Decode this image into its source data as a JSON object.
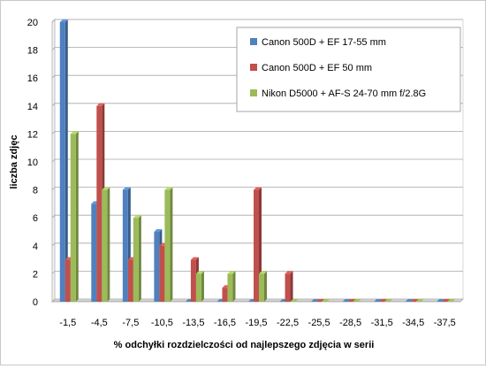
{
  "chart_data": {
    "type": "bar",
    "categories": [
      "-1,5",
      "-4,5",
      "-7,5",
      "-10,5",
      "-13,5",
      "-16,5",
      "-19,5",
      "-22,5",
      "-25,5",
      "-28,5",
      "-31,5",
      "-34,5",
      "-37,5"
    ],
    "series": [
      {
        "name": "Canon 500D + EF 17-55 mm",
        "color": "#4F81BD",
        "values": [
          20,
          7,
          8,
          5,
          0,
          0,
          0,
          0,
          0,
          0,
          0,
          0,
          0
        ]
      },
      {
        "name": "Canon 500D + EF 50 mm",
        "color": "#C0504D",
        "values": [
          3,
          14,
          3,
          4,
          3,
          1,
          8,
          2,
          0,
          0,
          0,
          0,
          0
        ]
      },
      {
        "name": "Nikon D5000 + AF-S 24-70 mm f/2.8G",
        "color": "#9BBB59",
        "values": [
          12,
          8,
          6,
          8,
          2,
          2,
          2,
          0,
          0,
          0,
          0,
          0,
          0
        ]
      }
    ],
    "ylim": [
      0,
      20
    ],
    "yticks": [
      "0",
      "2",
      "4",
      "6",
      "8",
      "10",
      "12",
      "14",
      "16",
      "18",
      "20"
    ],
    "xlabel": "% odchyłki  rozdzielczości  od najlepszego  zdjęcia  w serii",
    "ylabel": "liczba zdjęc",
    "grid": true,
    "legend_position": "top-right"
  }
}
